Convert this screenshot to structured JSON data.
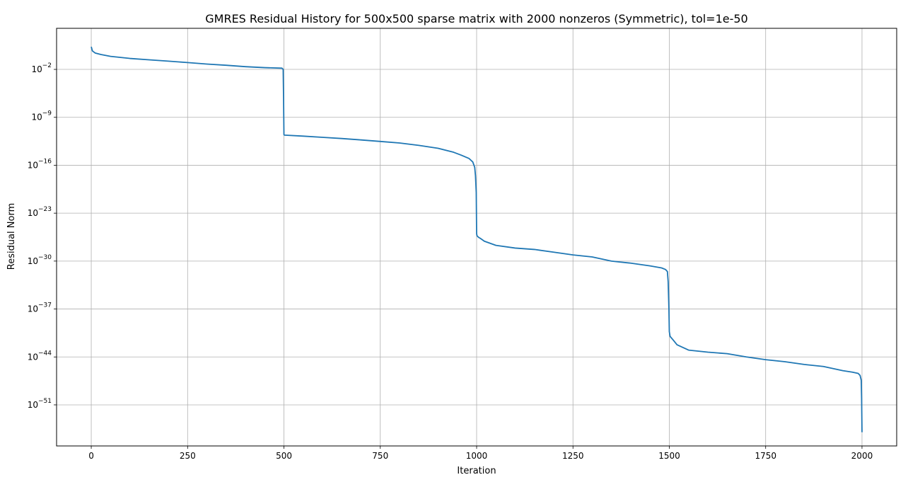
{
  "chart_data": {
    "type": "line",
    "title": "GMRES Residual History for 500x500 sparse matrix with 2000 nonzeros (Symmetric), tol=1e-50",
    "xlabel": "Iteration",
    "ylabel": "Residual Norm",
    "xlim": [
      -90,
      2090
    ],
    "ylim": [
      1e-57,
      10000.0
    ],
    "yscale": "log",
    "grid": true,
    "legend": "none",
    "line_color": "#1f77b4",
    "x_ticks": [
      0,
      250,
      500,
      750,
      1000,
      1250,
      1500,
      1750,
      2000
    ],
    "x_tick_labels": [
      "0",
      "250",
      "500",
      "750",
      "1000",
      "1250",
      "1500",
      "1750",
      "2000"
    ],
    "y_ticks": [
      {
        "value": 0.01,
        "base": "10",
        "exp": "−2"
      },
      {
        "value": 1e-09,
        "base": "10",
        "exp": "−9"
      },
      {
        "value": 1e-16,
        "base": "10",
        "exp": "−16"
      },
      {
        "value": 1e-23,
        "base": "10",
        "exp": "−23"
      },
      {
        "value": 1e-30,
        "base": "10",
        "exp": "−30"
      },
      {
        "value": 1e-37,
        "base": "10",
        "exp": "−37"
      },
      {
        "value": 1e-44,
        "base": "10",
        "exp": "−44"
      },
      {
        "value": 1e-51,
        "base": "10",
        "exp": "−51"
      }
    ],
    "series": [
      {
        "x": [
          0,
          3,
          10,
          25,
          50,
          100,
          150,
          200,
          250,
          300,
          350,
          400,
          450,
          495,
          498,
          499,
          500,
          501,
          550,
          600,
          650,
          700,
          750,
          800,
          850,
          900,
          940,
          960,
          980,
          990,
          995,
          997,
          999,
          1000,
          1001,
          1005,
          1010,
          1020,
          1050,
          1100,
          1150,
          1200,
          1250,
          1300,
          1350,
          1400,
          1450,
          1480,
          1490,
          1495,
          1497,
          1499,
          1500,
          1502,
          1510,
          1520,
          1550,
          1600,
          1650,
          1700,
          1750,
          1800,
          1850,
          1900,
          1950,
          1975,
          1990,
          1995,
          1998,
          1999,
          2000
        ],
        "y": [
          20.0,
          5.0,
          2.5,
          1.5,
          0.8,
          0.4,
          0.25,
          0.16,
          0.1,
          0.06,
          0.04,
          0.025,
          0.018,
          0.015,
          0.01,
          1e-06,
          3e-12,
          2.5e-12,
          1.8e-12,
          1.2e-12,
          8e-13,
          5e-13,
          3e-13,
          1.8e-13,
          8e-14,
          3e-14,
          8e-15,
          3e-15,
          1e-15,
          3e-16,
          5e-17,
          3e-18,
          1e-20,
          1e-26,
          5e-27,
          3e-27,
          2e-27,
          8e-28,
          2e-28,
          8e-29,
          5e-29,
          2e-29,
          8e-30,
          4e-30,
          1e-30,
          5e-31,
          2e-31,
          1e-31,
          6e-32,
          3e-32,
          1e-33,
          1e-37,
          5e-41,
          1e-41,
          3e-42,
          6e-43,
          1e-43,
          5e-44,
          3e-44,
          1e-44,
          4e-45,
          2e-45,
          8e-46,
          4e-46,
          1e-46,
          6e-47,
          4e-47,
          2e-47,
          4e-48,
          1e-50,
          1e-55
        ]
      }
    ]
  }
}
